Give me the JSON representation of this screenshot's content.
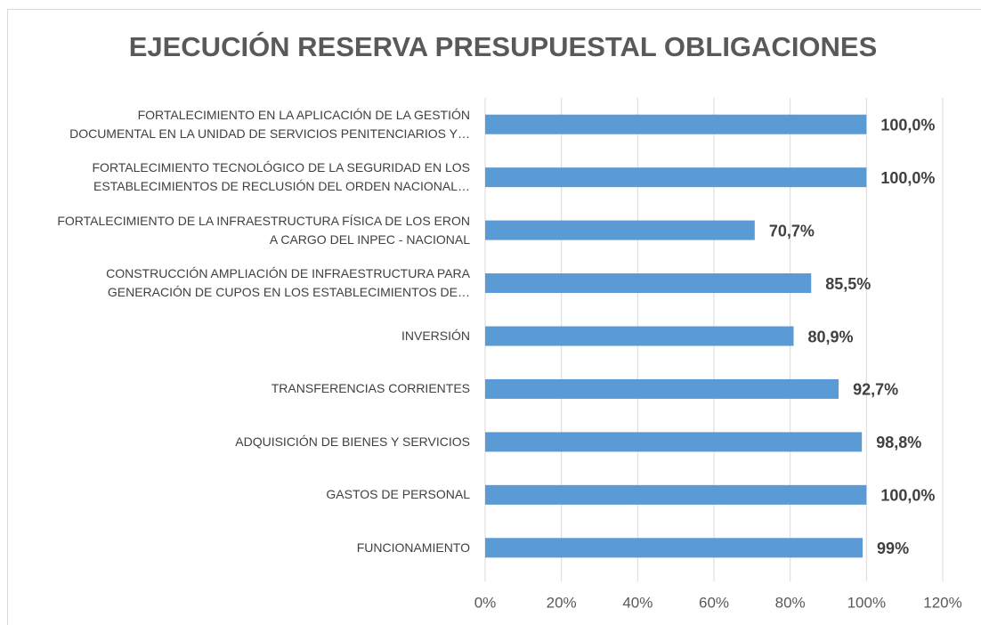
{
  "chart_data": {
    "type": "barh",
    "title": "EJECUCIÓN RESERVA PRESUPUESTAL OBLIGACIONES",
    "categories": [
      "FORTALECIMIENTO EN LA APLICACIÓN DE LA GESTIÓN\nDOCUMENTAL   EN LA UNIDAD DE SERVICIOS PENITENCIARIOS Y…",
      "FORTALECIMIENTO TECNOLÓGICO DE LA SEGURIDAD EN LOS\nESTABLECIMIENTOS DE RECLUSIÓN DEL ORDEN NACIONAL…",
      "FORTALECIMIENTO DE LA INFRAESTRUCTURA FÍSICA DE LOS ERON\nA CARGO DEL INPEC -  NACIONAL",
      "CONSTRUCCIÓN  AMPLIACIÓN DE INFRAESTRUCTURA PARA\nGENERACIÓN DE CUPOS EN LOS ESTABLECIMIENTOS DE…",
      "INVERSIÓN",
      "TRANSFERENCIAS CORRIENTES",
      "ADQUISICIÓN DE BIENES Y SERVICIOS",
      "GASTOS DE PERSONAL",
      "FUNCIONAMIENTO"
    ],
    "values": [
      100.0,
      100.0,
      70.7,
      85.5,
      80.9,
      92.7,
      98.8,
      100.0,
      99
    ],
    "value_labels": [
      "100,0%",
      "100,0%",
      "70,7%",
      "85,5%",
      "80,9%",
      "92,7%",
      "98,8%",
      "100,0%",
      "99%"
    ],
    "color": "#5b9bd5",
    "xlim": [
      0,
      120
    ],
    "xticks": [
      {
        "value": 0,
        "label": "0%"
      },
      {
        "value": 20,
        "label": "20%"
      },
      {
        "value": 40,
        "label": "40%"
      },
      {
        "value": 60,
        "label": "60%"
      },
      {
        "value": 80,
        "label": "80%"
      },
      {
        "value": 100,
        "label": "100%"
      },
      {
        "value": 120,
        "label": "120%"
      }
    ],
    "grid": true
  }
}
